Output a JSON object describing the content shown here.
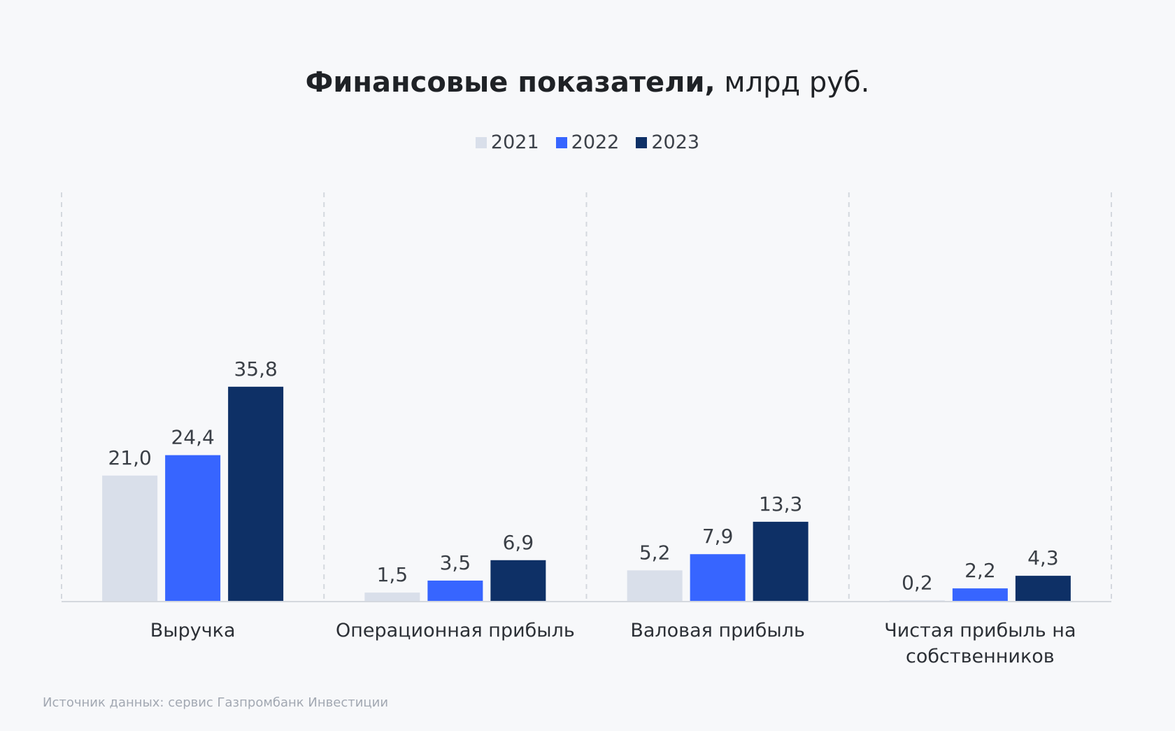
{
  "title": {
    "bold": "Финансовые показатели,",
    "normal": "млрд руб."
  },
  "source": "Источник данных: сервис Газпромбанк Инвестиции",
  "chart_data": {
    "type": "bar",
    "categories": [
      [
        "Выручка"
      ],
      [
        "Операционная прибыль"
      ],
      [
        "Валовая прибыль"
      ],
      [
        "Чистая прибыль на",
        "собственников"
      ]
    ],
    "series": [
      {
        "name": "2021",
        "color": "#d9dfea",
        "values": [
          21.0,
          1.5,
          5.2,
          0.2
        ],
        "labels": [
          "21,0",
          "1,5",
          "5,2",
          "0,2"
        ]
      },
      {
        "name": "2022",
        "color": "#3765ff",
        "values": [
          24.4,
          3.5,
          7.9,
          2.2
        ],
        "labels": [
          "24,4",
          "3,5",
          "7,9",
          "2,2"
        ]
      },
      {
        "name": "2023",
        "color": "#0e3066",
        "values": [
          35.8,
          6.9,
          13.3,
          4.3
        ],
        "labels": [
          "35,8",
          "6,9",
          "13,3",
          "4,3"
        ]
      }
    ],
    "ylim": [
      0,
      40
    ],
    "grid": "vertical dashed separators",
    "legend": "top-center"
  }
}
